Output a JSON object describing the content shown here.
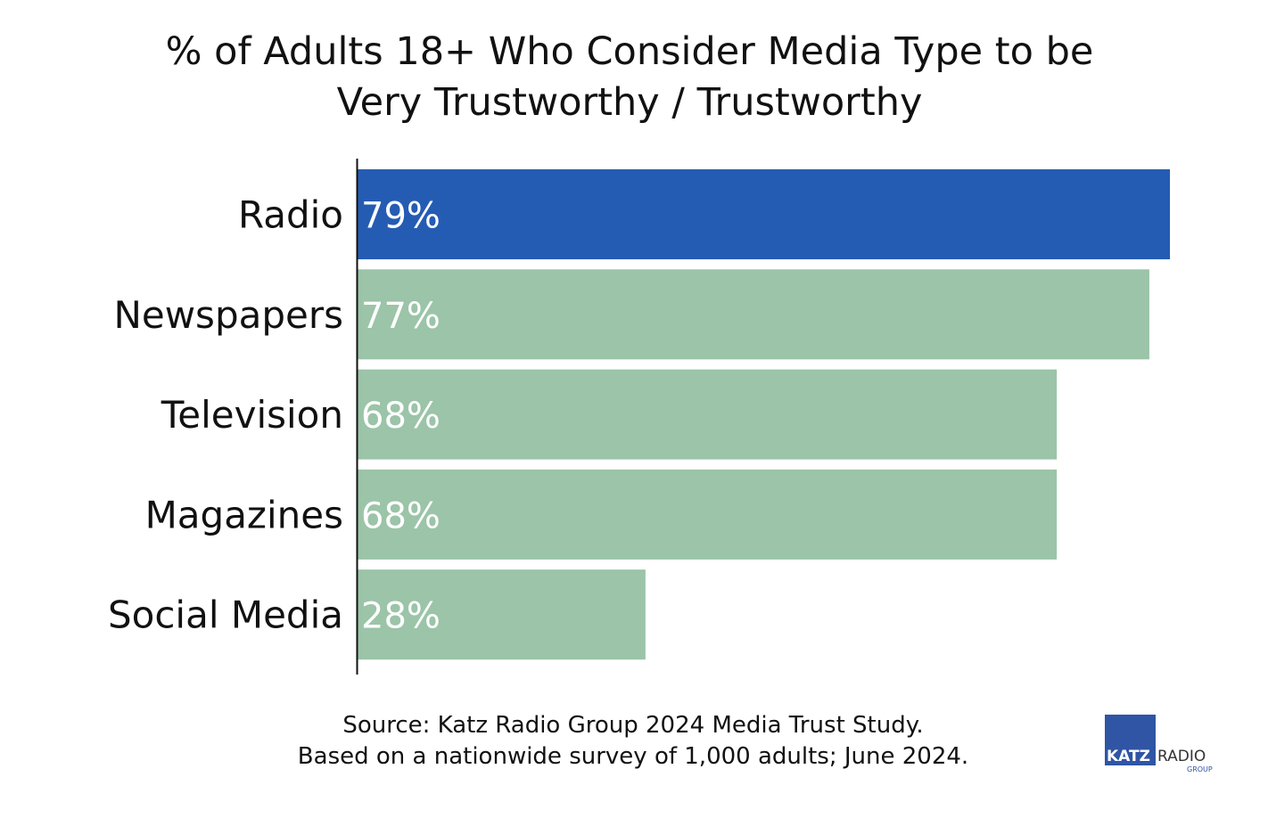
{
  "chart_data": {
    "type": "bar",
    "orientation": "horizontal",
    "title": "% of Adults 18+ Who Consider Media Type to be Very Trustworthy / Trustworthy",
    "title_lines": [
      "% of Adults 18+ Who Consider Media Type to be",
      "Very Trustworthy / Trustworthy"
    ],
    "categories": [
      "Radio",
      "Newspapers",
      "Television",
      "Magazines",
      "Social Media"
    ],
    "values": [
      79,
      77,
      68,
      68,
      28
    ],
    "value_labels": [
      "79%",
      "77%",
      "68%",
      "68%",
      "28%"
    ],
    "colors": [
      "#255cb3",
      "#9bc4a8",
      "#9bc4a8",
      "#9bc4a8",
      "#9bc4a8"
    ],
    "label_color": "#ffffff",
    "xlim": [
      0,
      79
    ],
    "grid": false,
    "legend": "none",
    "xlabel": "",
    "ylabel": ""
  },
  "footer": {
    "source_line_1": "Source: Katz Radio Group 2024 Media Trust Study.",
    "source_line_2": "Based on a nationwide survey of 1,000 adults; June 2024."
  },
  "logo": {
    "word_1": "KATZ",
    "word_2": "RADIO",
    "word_3": "GROUP",
    "brand_color": "#2f55a4"
  }
}
